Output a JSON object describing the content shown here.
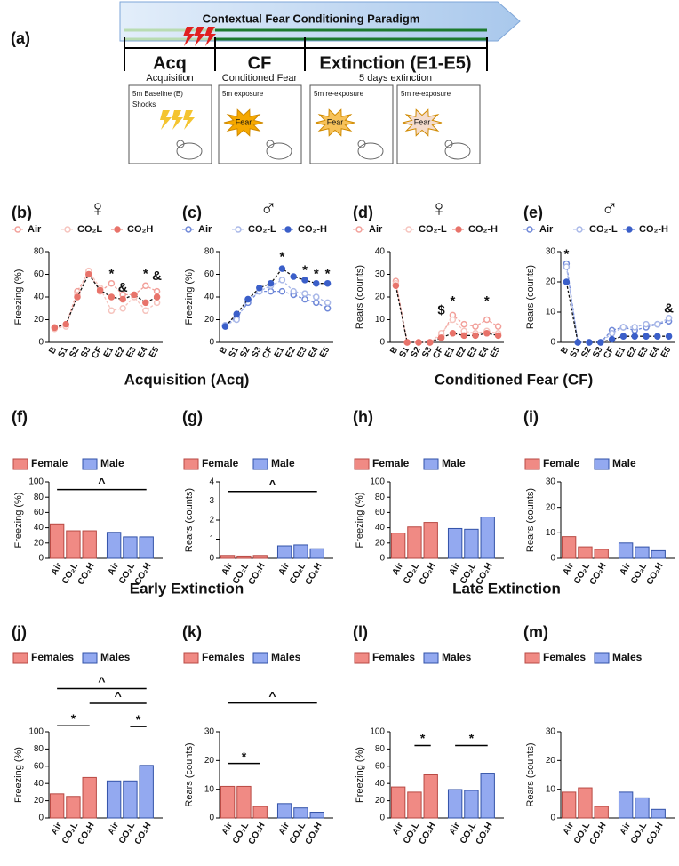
{
  "figure_label": "(a)",
  "schematic": {
    "title": "Contextual Fear Conditioning Paradigm",
    "phases": [
      {
        "label": "Acq",
        "sublabel": "Acquisition"
      },
      {
        "label": "CF",
        "sublabel": "Conditioned Fear"
      },
      {
        "label": "Extinction (E1-E5)",
        "sublabel": "5 days extinction"
      }
    ],
    "boxes": [
      {
        "lines": [
          "5m Baseline (B)",
          "Shocks"
        ]
      },
      {
        "lines": [
          "5m exposure"
        ],
        "badge": "Fear"
      },
      {
        "lines": [
          "5m re-exposure"
        ],
        "badge": "Fear"
      },
      {
        "lines": [
          "5m re-exposure"
        ],
        "badge": "Fear"
      }
    ]
  },
  "sections": [
    "Acquisition (Acq)",
    "Conditioned Fear (CF)",
    "Early Extinction",
    "Late Extinction"
  ],
  "chart_data": [
    {
      "type": "line",
      "label": "(b)",
      "title": "♀",
      "ylabel": "Freezing (%)",
      "categories": [
        "B",
        "S1",
        "S2",
        "S3",
        "CF",
        "E1",
        "E2",
        "E3",
        "E4",
        "E5"
      ],
      "ylim": [
        0,
        80
      ],
      "yticks": [
        0,
        20,
        40,
        60,
        80
      ],
      "series": [
        {
          "name": "Air",
          "color": "#f2a09a",
          "marker": "open",
          "values": [
            13,
            15,
            45,
            62,
            45,
            52,
            42,
            42,
            50,
            45
          ]
        },
        {
          "name": "CO₂L",
          "color": "#f6c4be",
          "marker": "open",
          "values": [
            12,
            14,
            42,
            63,
            48,
            28,
            30,
            40,
            28,
            35
          ]
        },
        {
          "name": "CO₂H",
          "color": "#e8736a",
          "marker": "filled",
          "values": [
            13,
            16,
            40,
            60,
            46,
            40,
            38,
            42,
            35,
            40
          ]
        }
      ],
      "annotations": [
        {
          "text": "*",
          "category": "E1",
          "y": 60
        },
        {
          "text": "&",
          "category": "E2",
          "y": 48
        },
        {
          "text": "*",
          "category": "E4",
          "y": 60
        },
        {
          "text": "&",
          "category": "E5",
          "y": 58
        }
      ]
    },
    {
      "type": "line",
      "label": "(c)",
      "title": "♂",
      "ylabel": "Freezing (%)",
      "categories": [
        "B",
        "S1",
        "S2",
        "S3",
        "CF",
        "E1",
        "E2",
        "E3",
        "E4",
        "E5"
      ],
      "ylim": [
        0,
        80
      ],
      "yticks": [
        0,
        20,
        40,
        60,
        80
      ],
      "series": [
        {
          "name": "Air",
          "color": "#6f88d8",
          "marker": "open",
          "values": [
            15,
            22,
            35,
            45,
            45,
            45,
            42,
            38,
            35,
            30
          ]
        },
        {
          "name": "CO₂-L",
          "color": "#a9b8e8",
          "marker": "open",
          "values": [
            15,
            20,
            38,
            45,
            50,
            55,
            45,
            43,
            40,
            35
          ]
        },
        {
          "name": "CO₂-H",
          "color": "#3b5fc9",
          "marker": "filled",
          "values": [
            14,
            25,
            38,
            48,
            52,
            65,
            58,
            55,
            52,
            52
          ]
        }
      ],
      "annotations": [
        {
          "text": "*",
          "category": "E1",
          "y": 75
        },
        {
          "text": "*",
          "category": "E3",
          "y": 63
        },
        {
          "text": "*",
          "category": "E4",
          "y": 60
        },
        {
          "text": "*",
          "category": "E5",
          "y": 60
        }
      ]
    },
    {
      "type": "line",
      "label": "(d)",
      "title": "♀",
      "ylabel": "Rears (counts)",
      "categories": [
        "B",
        "S1",
        "S2",
        "S3",
        "CF",
        "E1",
        "E2",
        "E3",
        "E4",
        "E5"
      ],
      "ylim": [
        0,
        40
      ],
      "yticks": [
        0,
        10,
        20,
        30,
        40
      ],
      "series": [
        {
          "name": "Air",
          "color": "#f2a09a",
          "marker": "open",
          "values": [
            27,
            0,
            0,
            0,
            3,
            12,
            8,
            7,
            10,
            7
          ]
        },
        {
          "name": "CO₂-L",
          "color": "#f6c4be",
          "marker": "open",
          "values": [
            26,
            0,
            0,
            0,
            4,
            10,
            5,
            4,
            5,
            4
          ]
        },
        {
          "name": "CO₂-H",
          "color": "#e8736a",
          "marker": "filled",
          "values": [
            25,
            0,
            0,
            0,
            2,
            4,
            3,
            3,
            4,
            3
          ]
        }
      ],
      "annotations": [
        {
          "text": "$",
          "category": "CF",
          "y": 14
        },
        {
          "text": "*",
          "category": "E1",
          "y": 18
        },
        {
          "text": "*",
          "category": "E4",
          "y": 18
        }
      ]
    },
    {
      "type": "line",
      "label": "(e)",
      "title": "♂",
      "ylabel": "Rears (counts)",
      "categories": [
        "B",
        "S1",
        "S2",
        "S3",
        "CF",
        "E1",
        "E2",
        "E3",
        "E4",
        "E5"
      ],
      "ylim": [
        0,
        30
      ],
      "yticks": [
        0,
        10,
        20,
        30
      ],
      "series": [
        {
          "name": "Air",
          "color": "#6f88d8",
          "marker": "open",
          "values": [
            26,
            0,
            0,
            0,
            4,
            5,
            4,
            5,
            6,
            7
          ]
        },
        {
          "name": "CO₂-L",
          "color": "#a9b8e8",
          "marker": "open",
          "values": [
            25,
            0,
            0,
            0,
            3,
            5,
            5,
            6,
            6,
            8
          ]
        },
        {
          "name": "CO₂-H",
          "color": "#3b5fc9",
          "marker": "filled",
          "values": [
            20,
            0,
            0,
            0,
            1,
            2,
            2,
            2,
            2,
            2
          ]
        }
      ],
      "annotations": [
        {
          "text": "*",
          "category": "B",
          "y": 29
        },
        {
          "text": "&",
          "category": "E5",
          "y": 11
        }
      ]
    },
    {
      "type": "bar",
      "label": "(f)",
      "ylabel": "Freezing (%)",
      "categories": [
        "Air",
        "CO₂L",
        "CO₂H"
      ],
      "ylim": [
        0,
        100
      ],
      "yticks": [
        0,
        20,
        40,
        60,
        80,
        100
      ],
      "series": [
        {
          "name": "Female",
          "color": "#f08a84",
          "values": [
            45,
            36,
            36
          ]
        },
        {
          "name": "Male",
          "color": "#93a9f0",
          "values": [
            34,
            28,
            28
          ]
        }
      ],
      "annotations": [
        {
          "text": "^",
          "y": 90
        }
      ]
    },
    {
      "type": "bar",
      "label": "(g)",
      "ylabel": "Rears (counts)",
      "categories": [
        "Air",
        "CO₂L",
        "CO₂H"
      ],
      "ylim": [
        0,
        4
      ],
      "yticks": [
        0,
        1,
        2,
        3,
        4
      ],
      "series": [
        {
          "name": "Female",
          "color": "#f08a84",
          "values": [
            0.15,
            0.12,
            0.15
          ]
        },
        {
          "name": "Male",
          "color": "#93a9f0",
          "values": [
            0.65,
            0.7,
            0.5
          ]
        }
      ],
      "annotations": [
        {
          "text": "^",
          "y": 3.5
        }
      ]
    },
    {
      "type": "bar",
      "label": "(h)",
      "ylabel": "Freezing (%)",
      "categories": [
        "Air",
        "CO₂L",
        "CO₂H"
      ],
      "ylim": [
        0,
        100
      ],
      "yticks": [
        0,
        20,
        40,
        60,
        80,
        100
      ],
      "series": [
        {
          "name": "Female",
          "color": "#f08a84",
          "values": [
            33,
            41,
            47
          ]
        },
        {
          "name": "Male",
          "color": "#93a9f0",
          "values": [
            39,
            38,
            54
          ]
        }
      ],
      "annotations": []
    },
    {
      "type": "bar",
      "label": "(i)",
      "ylabel": "Rears (counts)",
      "categories": [
        "Air",
        "CO₂L",
        "CO₂H"
      ],
      "ylim": [
        0,
        30
      ],
      "yticks": [
        0,
        10,
        20,
        30
      ],
      "series": [
        {
          "name": "Female",
          "color": "#f08a84",
          "values": [
            8.5,
            4.5,
            3.5
          ]
        },
        {
          "name": "Male",
          "color": "#93a9f0",
          "values": [
            6,
            4.5,
            3
          ]
        }
      ],
      "annotations": []
    },
    {
      "type": "bar",
      "label": "(j)",
      "ylabel": "Freezing (%)",
      "categories": [
        "Air",
        "CO₂L",
        "CO₂H"
      ],
      "ylim": [
        0,
        100
      ],
      "yticks": [
        0,
        20,
        40,
        60,
        80,
        100
      ],
      "series": [
        {
          "name": "Females",
          "color": "#f08a84",
          "values": [
            28,
            25,
            47
          ]
        },
        {
          "name": "Males",
          "color": "#93a9f0",
          "values": [
            43,
            43,
            61
          ]
        }
      ],
      "annotations": [
        {
          "text": "^",
          "y": 150
        },
        {
          "text": "^",
          "y": 133
        },
        {
          "text": "*",
          "y": 107
        },
        {
          "text": "*",
          "y": 106
        }
      ]
    },
    {
      "type": "bar",
      "label": "(k)",
      "ylabel": "Rears (counts)",
      "categories": [
        "Air",
        "CO₂L",
        "CO₂H"
      ],
      "ylim": [
        0,
        30
      ],
      "yticks": [
        0,
        10,
        20,
        30
      ],
      "series": [
        {
          "name": "Females",
          "color": "#f08a84",
          "values": [
            11,
            11,
            4
          ]
        },
        {
          "name": "Males",
          "color": "#93a9f0",
          "values": [
            5,
            3.5,
            2
          ]
        }
      ],
      "annotations": [
        {
          "text": "^",
          "y": 40
        },
        {
          "text": "*",
          "y": 19
        }
      ]
    },
    {
      "type": "bar",
      "label": "(l)",
      "ylabel": "Freezing (%)",
      "categories": [
        "Air",
        "CO₂L",
        "CO₂H"
      ],
      "ylim": [
        0,
        100
      ],
      "yticks": [
        0,
        20,
        40,
        60,
        80,
        100
      ],
      "series": [
        {
          "name": "Females",
          "color": "#f08a84",
          "values": [
            36,
            30,
            50
          ]
        },
        {
          "name": "Males",
          "color": "#93a9f0",
          "values": [
            33,
            32,
            52
          ]
        }
      ],
      "annotations": [
        {
          "text": "*",
          "y": 84
        },
        {
          "text": "*",
          "y": 84
        }
      ]
    },
    {
      "type": "bar",
      "label": "(m)",
      "ylabel": "Rears (counts)",
      "categories": [
        "Air",
        "CO₂L",
        "CO₂H"
      ],
      "ylim": [
        0,
        30
      ],
      "yticks": [
        0,
        10,
        20,
        30
      ],
      "series": [
        {
          "name": "Females",
          "color": "#f08a84",
          "values": [
            9,
            10.5,
            4
          ]
        },
        {
          "name": "Males",
          "color": "#93a9f0",
          "values": [
            9,
            7,
            3
          ]
        }
      ],
      "annotations": []
    }
  ]
}
